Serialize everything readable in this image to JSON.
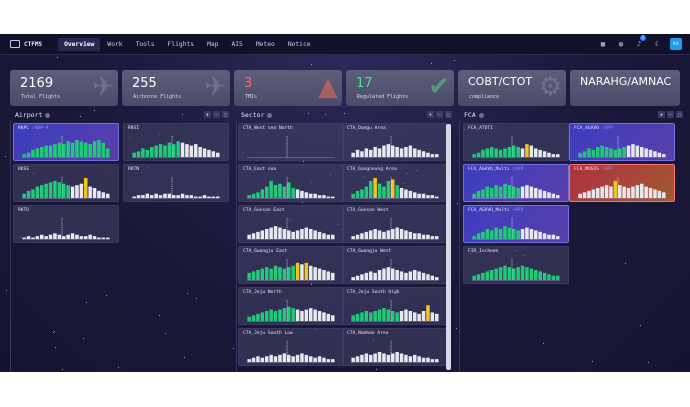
{
  "nav": {
    "logo": "CTFMS",
    "items": [
      {
        "label": "Overview",
        "active": true
      },
      {
        "label": "Work",
        "active": false
      },
      {
        "label": "Tools",
        "active": false
      },
      {
        "label": "Flights",
        "active": false
      },
      {
        "label": "Map",
        "active": false
      },
      {
        "label": "AIS",
        "active": false
      },
      {
        "label": "Meteo",
        "active": false
      },
      {
        "label": "Notice",
        "active": false
      }
    ],
    "icons": [
      "layout-icon",
      "globe-icon",
      "bell-icon",
      "moon-icon"
    ],
    "notification_count": "1",
    "avatar": "KA"
  },
  "stats": [
    {
      "value": "2169",
      "label": "Total Flights",
      "icon": "airplane-icon",
      "color": "#ffffff"
    },
    {
      "value": "255",
      "label": "Airborne Flights",
      "icon": "airplane-icon",
      "color": "#ffffff"
    },
    {
      "value": "3",
      "label": "TMIs",
      "icon": "warning-icon",
      "color": "#ff6b5b"
    },
    {
      "value": "17",
      "label": "Regulated Flights",
      "icon": "check-icon",
      "color": "#4fe08a"
    },
    {
      "value": "COBT/CTOT",
      "label": "compliance",
      "icon": "gear-icon",
      "color": "#ffffff"
    },
    {
      "value": "NARAHG/AMNAC",
      "label": "",
      "icon": "",
      "color": "#ffffff"
    }
  ],
  "colors": {
    "green": "#22c97a",
    "white": "#e8e8f0",
    "yellow": "#f5c518",
    "accent": "#8f93ff"
  },
  "sections": {
    "airport": {
      "title": "Airport",
      "tiles": [
        {
          "name": "RKPC",
          "sub": "/ADP-A",
          "style": "highlight",
          "bars": [
            2,
            3,
            5,
            6,
            7,
            8,
            8,
            9,
            10,
            9,
            11,
            10,
            12,
            11,
            10,
            9,
            11,
            12,
            10,
            6
          ]
        },
        {
          "name": "RKSI",
          "sub": "",
          "style": "normal",
          "bars": [
            3,
            4,
            6,
            5,
            7,
            8,
            9,
            8,
            10,
            9,
            11,
            10,
            9,
            8,
            9,
            7,
            6,
            5,
            4,
            3
          ]
        },
        {
          "name": "RKSS",
          "sub": "",
          "style": "normal",
          "bars": [
            3,
            5,
            6,
            8,
            9,
            10,
            11,
            12,
            11,
            10,
            9,
            8,
            9,
            10,
            14,
            8,
            7,
            5,
            4,
            3
          ],
          "yellow": [
            14
          ]
        },
        {
          "name": "RKTN",
          "sub": "",
          "style": "normal",
          "bars": [
            1,
            2,
            2,
            3,
            2,
            3,
            2,
            3,
            3,
            2,
            2,
            3,
            2,
            2,
            1,
            1,
            2,
            1,
            1,
            1
          ]
        },
        {
          "name": "RKTU",
          "sub": "",
          "style": "normal",
          "bars": [
            1,
            2,
            1,
            2,
            3,
            2,
            3,
            4,
            3,
            2,
            3,
            4,
            3,
            2,
            2,
            3,
            2,
            1,
            1,
            1
          ]
        }
      ]
    },
    "sector": {
      "title": "Sector",
      "tiles": [
        {
          "name": "CTA_West sea North",
          "sub": "",
          "style": "normal",
          "bars": [
            0,
            0,
            0,
            0,
            0,
            0,
            0,
            0,
            0,
            0,
            0,
            0,
            0,
            0,
            0,
            0,
            0,
            0,
            0,
            0
          ]
        },
        {
          "name": "CTA_Daegu Area",
          "sub": "",
          "style": "normal",
          "bars": [
            3,
            5,
            4,
            6,
            5,
            7,
            6,
            8,
            9,
            8,
            7,
            6,
            7,
            8,
            6,
            5,
            4,
            3,
            2,
            2
          ]
        },
        {
          "name": "CTA_East sea",
          "sub": "",
          "style": "normal",
          "bars": [
            2,
            3,
            4,
            6,
            8,
            12,
            9,
            10,
            8,
            11,
            7,
            6,
            5,
            4,
            3,
            3,
            2,
            2,
            1,
            1
          ]
        },
        {
          "name": "CTA_Gangneung Area",
          "sub": "",
          "style": "normal",
          "bars": [
            3,
            5,
            6,
            8,
            12,
            14,
            10,
            8,
            12,
            13,
            9,
            7,
            6,
            5,
            4,
            3,
            3,
            2,
            2,
            1
          ],
          "yellow": [
            5,
            9
          ]
        },
        {
          "name": "CTA_Gunsan East",
          "sub": "",
          "style": "normal",
          "bars": [
            3,
            4,
            5,
            6,
            7,
            8,
            9,
            8,
            7,
            6,
            5,
            6,
            7,
            8,
            7,
            6,
            5,
            4,
            3,
            3
          ]
        },
        {
          "name": "CTA_Gunsan West",
          "sub": "",
          "style": "normal",
          "bars": [
            2,
            3,
            4,
            5,
            6,
            7,
            6,
            5,
            6,
            7,
            8,
            7,
            6,
            5,
            4,
            4,
            3,
            3,
            2,
            2
          ]
        },
        {
          "name": "CTA_Gwangju East",
          "sub": "",
          "style": "normal",
          "bars": [
            5,
            6,
            7,
            8,
            9,
            8,
            10,
            9,
            8,
            9,
            10,
            12,
            11,
            12,
            10,
            9,
            8,
            7,
            6,
            5
          ],
          "yellow": [
            11,
            13
          ]
        },
        {
          "name": "CTA_Gwangju West",
          "sub": "",
          "style": "normal",
          "bars": [
            2,
            3,
            4,
            5,
            6,
            5,
            7,
            8,
            9,
            8,
            7,
            6,
            5,
            6,
            7,
            6,
            5,
            4,
            3,
            2
          ]
        },
        {
          "name": "CTA_Jeju North",
          "sub": "",
          "style": "normal",
          "bars": [
            3,
            4,
            5,
            6,
            7,
            8,
            7,
            8,
            9,
            10,
            9,
            8,
            7,
            8,
            9,
            8,
            7,
            6,
            5,
            4
          ]
        },
        {
          "name": "CTA_Jeju South High",
          "sub": "",
          "style": "normal",
          "bars": [
            4,
            5,
            6,
            7,
            6,
            7,
            8,
            9,
            8,
            7,
            6,
            7,
            8,
            7,
            6,
            5,
            7,
            11,
            6,
            5
          ],
          "yellow": [
            17
          ]
        },
        {
          "name": "CTA_Jeju South Low",
          "sub": "",
          "style": "normal",
          "bars": [
            2,
            3,
            4,
            3,
            4,
            5,
            4,
            5,
            6,
            5,
            4,
            5,
            6,
            5,
            4,
            3,
            4,
            3,
            2,
            2
          ]
        },
        {
          "name": "CTA_Namhae Area",
          "sub": "",
          "style": "normal",
          "bars": [
            3,
            4,
            5,
            6,
            5,
            6,
            7,
            6,
            5,
            6,
            7,
            6,
            5,
            4,
            5,
            4,
            3,
            3,
            2,
            2
          ]
        }
      ]
    },
    "fca": {
      "title": "FCA",
      "tiles": [
        {
          "name": "FCA_ATOTI",
          "sub": "",
          "style": "normal",
          "bars": [
            2,
            3,
            5,
            6,
            7,
            6,
            5,
            6,
            7,
            8,
            7,
            6,
            9,
            8,
            6,
            5,
            4,
            3,
            2,
            2
          ],
          "yellow": [
            12
          ]
        },
        {
          "name": "FCA_AGAVO",
          "sub": "/APP",
          "style": "highlight",
          "bars": [
            3,
            4,
            6,
            5,
            7,
            8,
            7,
            6,
            5,
            6,
            7,
            8,
            9,
            8,
            7,
            6,
            5,
            4,
            3,
            2
          ]
        },
        {
          "name": "FCA_AGAVO_Multi",
          "sub": "/APP",
          "style": "highlight",
          "bars": [
            3,
            5,
            6,
            8,
            7,
            9,
            8,
            10,
            9,
            8,
            7,
            8,
            9,
            8,
            7,
            6,
            5,
            4,
            3,
            2
          ]
        },
        {
          "name": "FCA_MUGUS",
          "sub": "/APP",
          "style": "alert",
          "bars": [
            3,
            4,
            5,
            6,
            7,
            8,
            9,
            8,
            12,
            9,
            8,
            7,
            8,
            9,
            10,
            8,
            7,
            6,
            5,
            4
          ],
          "yellow": [
            8
          ]
        },
        {
          "name": "FCA_AGAVO_Multi",
          "sub": "/APP",
          "style": "highlight",
          "bars": [
            2,
            4,
            5,
            7,
            6,
            8,
            7,
            9,
            8,
            7,
            6,
            7,
            8,
            7,
            6,
            5,
            4,
            3,
            3,
            2
          ]
        },
        {
          "name": "FIR_Incheon",
          "sub": "",
          "style": "normal",
          "bars": [
            3,
            4,
            5,
            6,
            7,
            8,
            9,
            10,
            9,
            8,
            9,
            10,
            9,
            8,
            7,
            6,
            5,
            4,
            3,
            3
          ]
        }
      ]
    }
  }
}
